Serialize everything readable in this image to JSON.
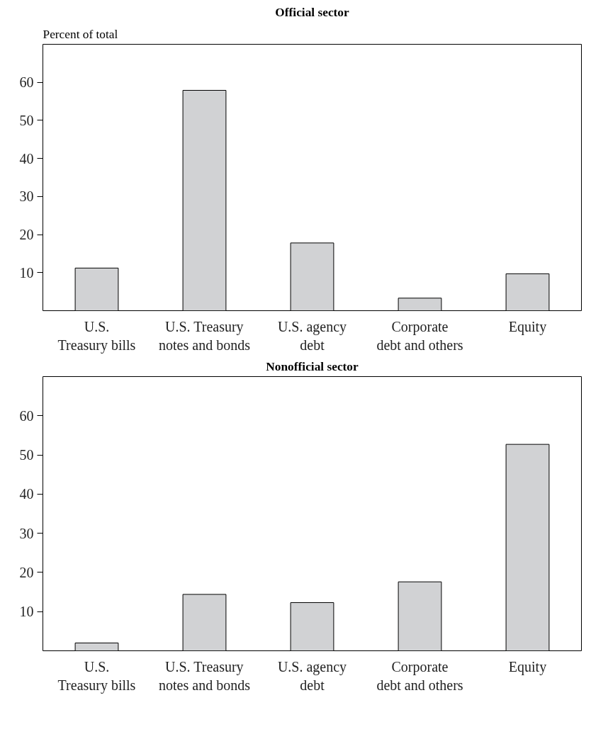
{
  "chart_data": [
    {
      "type": "bar",
      "title": "Official sector",
      "ylabel": "Percent of total",
      "categories": [
        "U.S.\nTreasury bills",
        "U.S. Treasury\nnotes and bonds",
        "U.S. agency\ndebt",
        "Corporate\ndebt and others",
        "Equity"
      ],
      "values": [
        11.2,
        57.9,
        17.8,
        3.3,
        9.7
      ],
      "color": "#d1d2d4",
      "ylim": [
        0,
        70
      ],
      "yticks": [
        10,
        20,
        30,
        40,
        50,
        60
      ],
      "grid": false
    },
    {
      "type": "bar",
      "title": "Nonofficial sector",
      "categories": [
        "U.S.\nTreasury bills",
        "U.S. Treasury\nnotes and bonds",
        "U.S. agency\ndebt",
        "Corporate\ndebt and others",
        "Equity"
      ],
      "values": [
        2.0,
        14.4,
        12.3,
        17.6,
        52.7
      ],
      "color": "#d1d2d4",
      "ylim": [
        0,
        70
      ],
      "yticks": [
        10,
        20,
        30,
        40,
        50,
        60
      ],
      "grid": false
    }
  ]
}
